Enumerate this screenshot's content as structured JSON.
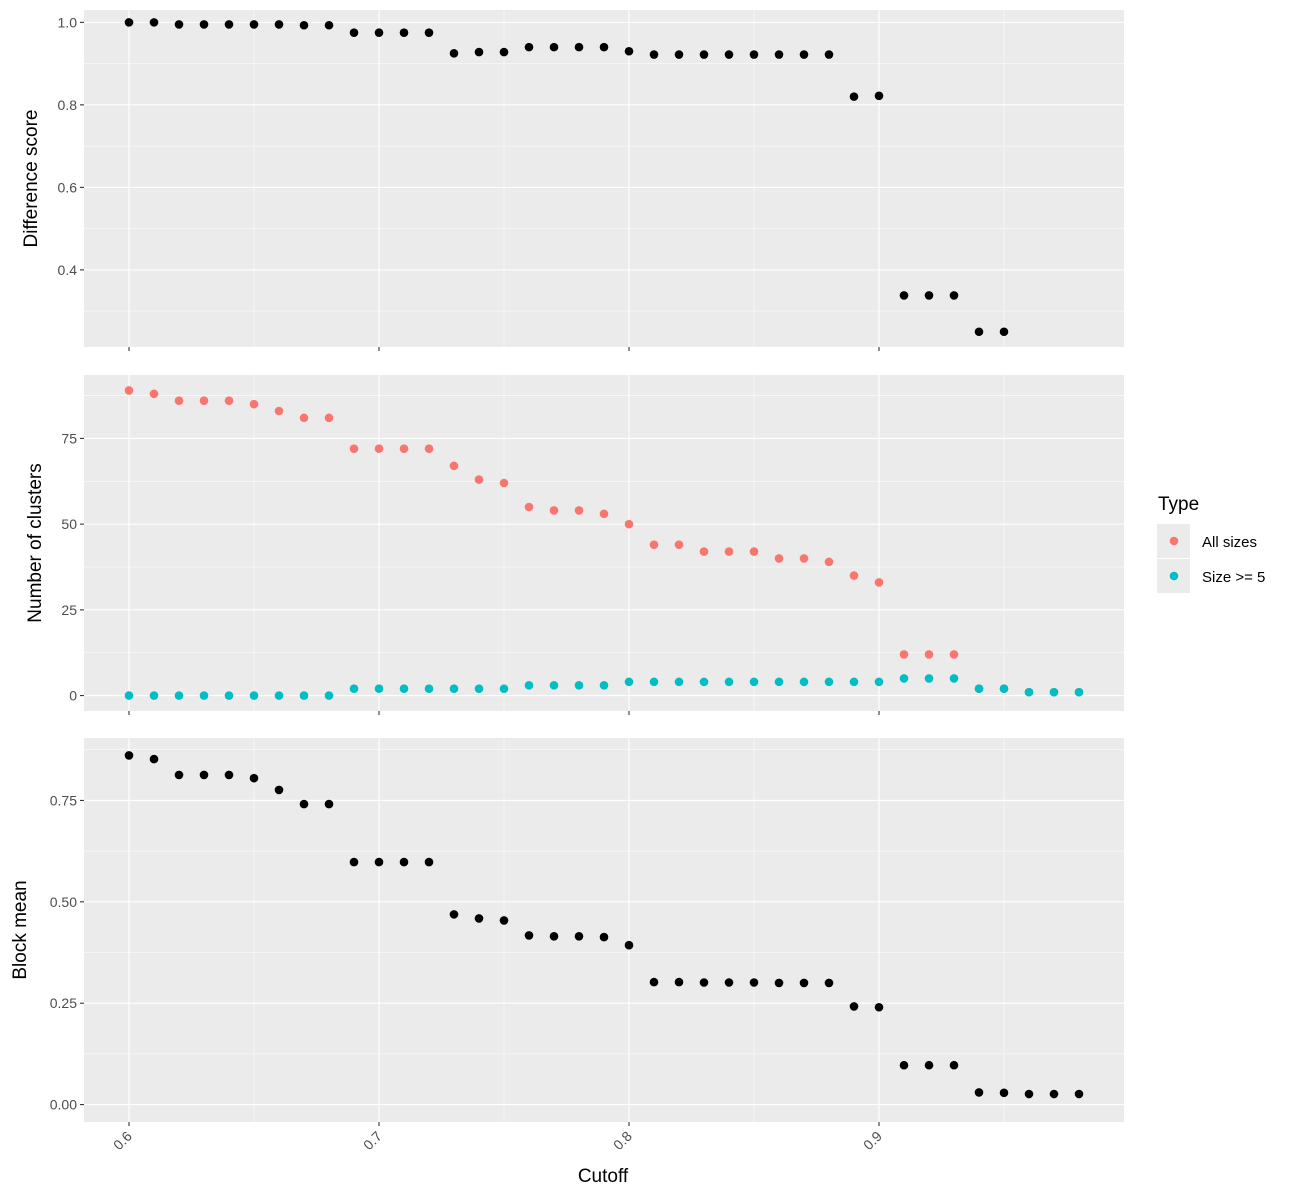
{
  "colors": {
    "panel_bg": "#EBEBEB",
    "grid": "#FFFFFF",
    "point_black": "#000000",
    "all_sizes": "#F8766D",
    "size_ge5": "#00BFC4",
    "tick_label": "#4D4D4D"
  },
  "x_axis": {
    "title": "Cutoff",
    "ticks": [
      0.6,
      0.7,
      0.8,
      0.9
    ],
    "tick_labels": [
      "0.6",
      "0.7",
      "0.8",
      "0.9"
    ],
    "range": [
      0.582,
      0.998
    ]
  },
  "legend": {
    "title": "Type",
    "items": [
      {
        "label": "All sizes",
        "color": "#F8766D"
      },
      {
        "label": "Size >= 5",
        "color": "#00BFC4"
      }
    ]
  },
  "chart_data": [
    {
      "type": "scatter",
      "ylabel": "Difference score",
      "ylim": [
        0.213,
        1.03
      ],
      "y_ticks": [
        0.4,
        0.6,
        0.8,
        1.0
      ],
      "y_tick_labels": [
        "0.4",
        "0.6",
        "0.8",
        "1.0"
      ],
      "grid": true,
      "series": [
        {
          "color": "#000000",
          "x": [
            0.6,
            0.61,
            0.62,
            0.63,
            0.64,
            0.65,
            0.66,
            0.67,
            0.68,
            0.69,
            0.7,
            0.71,
            0.72,
            0.73,
            0.74,
            0.75,
            0.76,
            0.77,
            0.78,
            0.79,
            0.8,
            0.81,
            0.82,
            0.83,
            0.84,
            0.85,
            0.86,
            0.87,
            0.88,
            0.89,
            0.9,
            0.91,
            0.92,
            0.93,
            0.94,
            0.95
          ],
          "y": [
            1.0,
            1.0,
            0.995,
            0.995,
            0.995,
            0.995,
            0.995,
            0.993,
            0.993,
            0.975,
            0.975,
            0.975,
            0.975,
            0.925,
            0.928,
            0.928,
            0.94,
            0.94,
            0.94,
            0.94,
            0.93,
            0.922,
            0.922,
            0.922,
            0.922,
            0.922,
            0.922,
            0.922,
            0.922,
            0.82,
            0.822,
            0.338,
            0.338,
            0.338,
            0.25,
            0.25
          ]
        }
      ]
    },
    {
      "type": "scatter",
      "ylabel": "Number of clusters",
      "ylim": [
        -4.5,
        93.5
      ],
      "y_ticks": [
        0,
        25,
        50,
        75
      ],
      "y_tick_labels": [
        "0",
        "25",
        "50",
        "75"
      ],
      "grid": true,
      "legend": "right",
      "series": [
        {
          "name": "All sizes",
          "color": "#F8766D",
          "x": [
            0.6,
            0.61,
            0.62,
            0.63,
            0.64,
            0.65,
            0.66,
            0.67,
            0.68,
            0.69,
            0.7,
            0.71,
            0.72,
            0.73,
            0.74,
            0.75,
            0.76,
            0.77,
            0.78,
            0.79,
            0.8,
            0.81,
            0.82,
            0.83,
            0.84,
            0.85,
            0.86,
            0.87,
            0.88,
            0.89,
            0.9,
            0.91,
            0.92,
            0.93,
            0.94,
            0.95,
            0.96,
            0.97,
            0.98
          ],
          "y": [
            89,
            88,
            86,
            86,
            86,
            85,
            83,
            81,
            81,
            72,
            72,
            72,
            72,
            67,
            63,
            62,
            55,
            54,
            54,
            53,
            50,
            44,
            44,
            42,
            42,
            42,
            40,
            40,
            39,
            35,
            33,
            12,
            12,
            12,
            2,
            2,
            1,
            1,
            1
          ]
        },
        {
          "name": "Size >= 5",
          "color": "#00BFC4",
          "x": [
            0.6,
            0.61,
            0.62,
            0.63,
            0.64,
            0.65,
            0.66,
            0.67,
            0.68,
            0.69,
            0.7,
            0.71,
            0.72,
            0.73,
            0.74,
            0.75,
            0.76,
            0.77,
            0.78,
            0.79,
            0.8,
            0.81,
            0.82,
            0.83,
            0.84,
            0.85,
            0.86,
            0.87,
            0.88,
            0.89,
            0.9,
            0.91,
            0.92,
            0.93,
            0.94,
            0.95,
            0.96,
            0.97,
            0.98
          ],
          "y": [
            0,
            0,
            0,
            0,
            0,
            0,
            0,
            0,
            0,
            2,
            2,
            2,
            2,
            2,
            2,
            2,
            3,
            3,
            3,
            3,
            4,
            4,
            4,
            4,
            4,
            4,
            4,
            4,
            4,
            4,
            4,
            5,
            5,
            5,
            2,
            2,
            1,
            1,
            1
          ]
        }
      ]
    },
    {
      "type": "scatter",
      "ylabel": "Block mean",
      "ylim": [
        -0.043,
        0.904
      ],
      "y_ticks": [
        0.0,
        0.25,
        0.5,
        0.75
      ],
      "y_tick_labels": [
        "0.00",
        "0.25",
        "0.50",
        "0.75"
      ],
      "grid": true,
      "series": [
        {
          "color": "#000000",
          "x": [
            0.6,
            0.61,
            0.62,
            0.63,
            0.64,
            0.65,
            0.66,
            0.67,
            0.68,
            0.69,
            0.7,
            0.71,
            0.72,
            0.73,
            0.74,
            0.75,
            0.76,
            0.77,
            0.78,
            0.79,
            0.8,
            0.81,
            0.82,
            0.83,
            0.84,
            0.85,
            0.86,
            0.87,
            0.88,
            0.89,
            0.9,
            0.91,
            0.92,
            0.93,
            0.94,
            0.95,
            0.96,
            0.97,
            0.98
          ],
          "y": [
            0.861,
            0.852,
            0.813,
            0.813,
            0.813,
            0.805,
            0.776,
            0.741,
            0.741,
            0.598,
            0.598,
            0.598,
            0.598,
            0.469,
            0.459,
            0.454,
            0.417,
            0.415,
            0.415,
            0.413,
            0.393,
            0.302,
            0.302,
            0.301,
            0.301,
            0.301,
            0.3,
            0.3,
            0.3,
            0.242,
            0.24,
            0.097,
            0.097,
            0.097,
            0.03,
            0.029,
            0.026,
            0.026,
            0.026
          ]
        }
      ]
    }
  ]
}
